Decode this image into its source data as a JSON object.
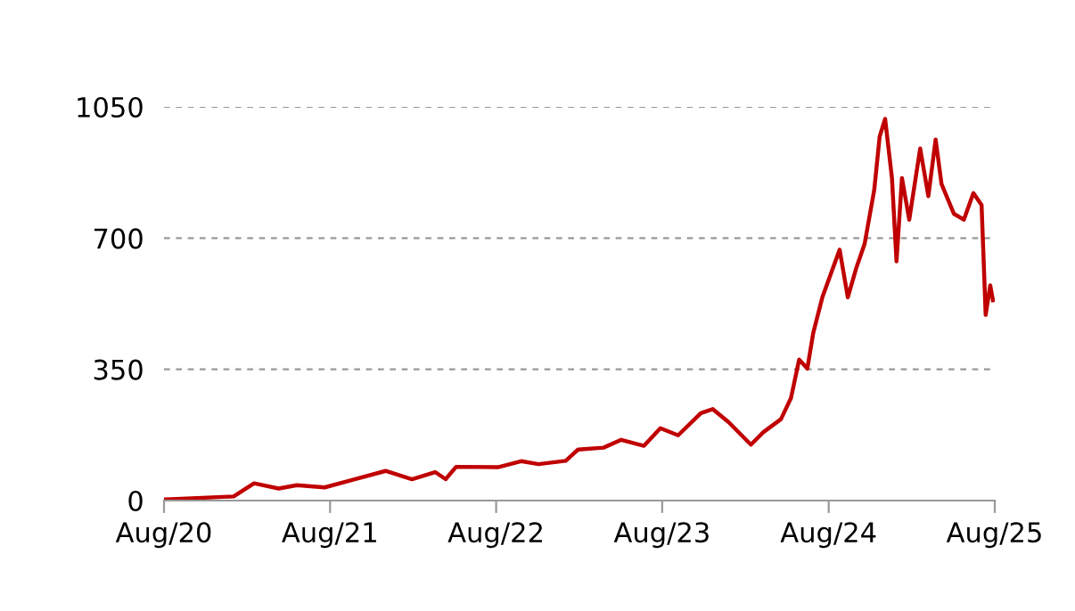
{
  "chart_data": {
    "type": "line",
    "x": [
      "2020-08-05",
      "2021-01-01",
      "2021-02-15",
      "2021-04-10",
      "2021-05-20",
      "2021-07-20",
      "2021-09-15",
      "2021-12-01",
      "2022-01-28",
      "2022-03-20",
      "2022-04-12",
      "2022-05-05",
      "2022-08-05",
      "2022-09-25",
      "2022-11-02",
      "2023-01-01",
      "2023-01-28",
      "2023-03-25",
      "2023-05-03",
      "2023-06-22",
      "2023-07-28",
      "2023-09-05",
      "2023-10-25",
      "2023-11-20",
      "2023-12-25",
      "2024-02-12",
      "2024-03-10",
      "2024-04-18",
      "2024-05-10",
      "2024-05-28",
      "2024-06-15",
      "2024-06-28",
      "2024-07-18",
      "2024-08-06",
      "2024-08-25",
      "2024-09-12",
      "2024-10-01",
      "2024-10-19",
      "2024-11-09",
      "2024-11-21",
      "2024-12-03",
      "2024-12-18",
      "2024-12-28",
      "2025-01-09",
      "2025-01-25",
      "2025-02-18",
      "2025-03-08",
      "2025-03-24",
      "2025-04-06",
      "2025-05-03",
      "2025-05-25",
      "2025-06-15",
      "2025-07-03",
      "2025-07-12",
      "2025-07-22",
      "2025-07-28"
    ],
    "series": [
      {
        "color": "#c00000",
        "values": [
          3,
          11,
          46,
          32,
          41,
          35,
          54,
          79,
          57,
          76,
          57,
          90,
          89,
          105,
          97,
          106,
          136,
          141,
          162,
          146,
          193,
          174,
          233,
          244,
          209,
          149,
          182,
          217,
          273,
          376,
          352,
          447,
          542,
          606,
          669,
          542,
          622,
          685,
          828,
          971,
          1018,
          860,
          638,
          860,
          749,
          939,
          812,
          963,
          844,
          765,
          749,
          820,
          788,
          495,
          574,
          534
        ]
      }
    ],
    "xlim": [
      "2020-08-01",
      "2025-08-01"
    ],
    "xticks": [
      {
        "value": "2020-08-01",
        "label": "Aug/20"
      },
      {
        "value": "2021-08-01",
        "label": "Aug/21"
      },
      {
        "value": "2022-08-01",
        "label": "Aug/22"
      },
      {
        "value": "2023-08-01",
        "label": "Aug/23"
      },
      {
        "value": "2024-08-01",
        "label": "Aug/24"
      },
      {
        "value": "2025-08-01",
        "label": "Aug/25"
      }
    ],
    "ylim": [
      0,
      1050
    ],
    "yticks": [
      0,
      350,
      700,
      1050
    ],
    "grid": "y",
    "marker": "none",
    "line_style": "solid",
    "legend": false
  }
}
